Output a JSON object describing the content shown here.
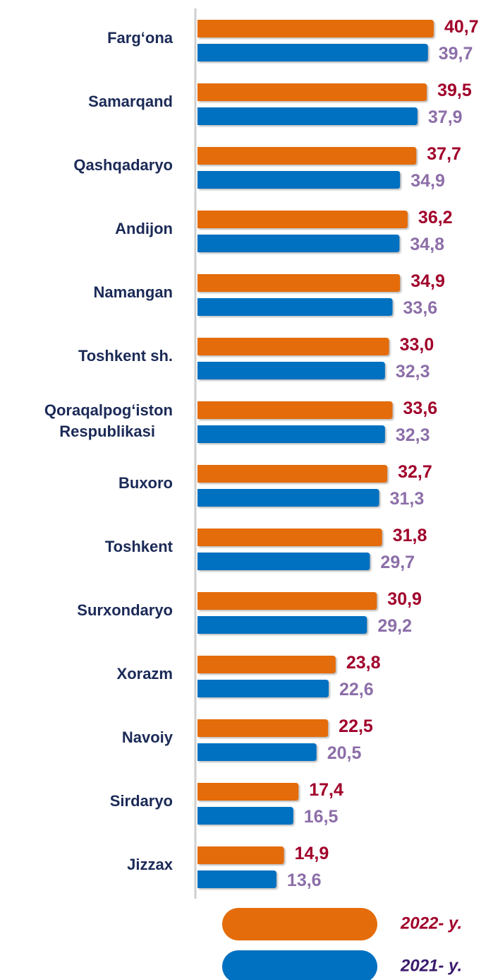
{
  "chart_data": {
    "type": "bar",
    "orientation": "horizontal",
    "categories": [
      "Farg‘ona",
      "Samarqand",
      "Qashqadaryo",
      "Andijon",
      "Namangan",
      "Toshkent sh.",
      "Qoraqalpog‘iston Respublikasi",
      "Buxoro",
      "Toshkent",
      "Surxondaryo",
      "Xorazm",
      "Navoiy",
      "Sirdaryo",
      "Jizzax"
    ],
    "series": [
      {
        "name": "2022- y.",
        "color": "#e46c0a",
        "label_color": "#a0002a",
        "values": [
          40.7,
          39.5,
          37.7,
          36.2,
          34.9,
          33.0,
          33.6,
          32.7,
          31.8,
          30.9,
          23.8,
          22.5,
          17.4,
          14.9
        ],
        "value_labels": [
          "40,7",
          "39,5",
          "37,7",
          "36,2",
          "34,9",
          "33,0",
          "33,6",
          "32,7",
          "31,8",
          "30,9",
          "23,8",
          "22,5",
          "17,4",
          "14,9"
        ]
      },
      {
        "name": "2021- y.",
        "color": "#0070c0",
        "label_color": "#3b1a6e",
        "values": [
          39.7,
          37.9,
          34.9,
          34.8,
          33.6,
          32.3,
          32.3,
          31.3,
          29.7,
          29.2,
          22.6,
          20.5,
          16.5,
          13.6
        ],
        "value_labels": [
          "39,7",
          "37,9",
          "34,9",
          "34,8",
          "33,6",
          "32,3",
          "32,3",
          "31,3",
          "29,7",
          "29,2",
          "22,6",
          "20,5",
          "16,5",
          "13,6"
        ]
      }
    ]
  }
}
